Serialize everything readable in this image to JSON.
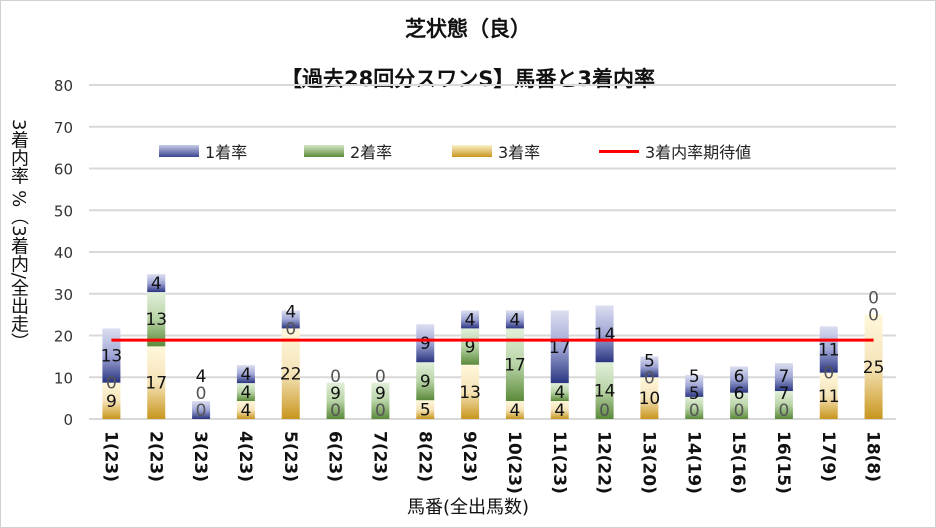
{
  "chart_data": {
    "type": "bar",
    "stacked": true,
    "title": "芝状態（良）",
    "subtitle": "【過去28回分スワンS】馬番と3着内率",
    "xlabel": "馬番(全出馬数)",
    "ylabel": "3着内率 %（3着内/全出走）",
    "ylim": [
      0,
      80
    ],
    "yticks": [
      "0",
      "10",
      "20",
      "30",
      "40",
      "50",
      "60",
      "70",
      "80"
    ],
    "grid": true,
    "legend_position": "top",
    "categories": [
      "1(23)",
      "2(23)",
      "3(23)",
      "4(23)",
      "5(23)",
      "6(23)",
      "7(23)",
      "8(22)",
      "9(23)",
      "10(23)",
      "11(23)",
      "12(22)",
      "13(20)",
      "14(19)",
      "15(16)",
      "16(15)",
      "17(9)",
      "18(8)"
    ],
    "series": [
      {
        "name": "3着率",
        "color": "#c8961e",
        "values": [
          8.7,
          17.4,
          0,
          4.3,
          21.7,
          0,
          0,
          4.5,
          13.0,
          4.3,
          4.3,
          0,
          10.0,
          0,
          0,
          0,
          11.1,
          25.0
        ],
        "labels": [
          "9",
          "17",
          "0",
          "4",
          "22",
          "0",
          "0",
          "5",
          "13",
          "4",
          "4",
          "0",
          "10",
          "0",
          "0",
          "0",
          "11",
          "25"
        ]
      },
      {
        "name": "2着率",
        "color": "#5b8a3a",
        "values": [
          0,
          13.0,
          0,
          4.3,
          0,
          8.7,
          8.7,
          9.1,
          8.7,
          17.4,
          4.3,
          13.6,
          0,
          5.3,
          6.3,
          6.7,
          0,
          0
        ],
        "labels": [
          "0",
          "13",
          "0",
          "4",
          "0",
          "9",
          "9",
          "9",
          "9",
          "17",
          "4",
          "14",
          "0",
          "5",
          "6",
          "7",
          "0",
          "0"
        ]
      },
      {
        "name": "1着率",
        "color": "#3a4590",
        "values": [
          13.0,
          4.3,
          4.3,
          4.3,
          4.3,
          0,
          0,
          9.1,
          4.3,
          4.3,
          17.4,
          13.6,
          5.0,
          5.3,
          6.3,
          6.7,
          11.1,
          0
        ],
        "labels": [
          "13",
          "4",
          "4",
          "4",
          "4",
          "0",
          "0",
          "9",
          "4",
          "4",
          "17",
          "14",
          "5",
          "5",
          "6",
          "7",
          "11",
          "0"
        ]
      }
    ],
    "reference_line": {
      "name": "3着内率期待値",
      "value": 18.9,
      "color": "#ff0000"
    }
  }
}
